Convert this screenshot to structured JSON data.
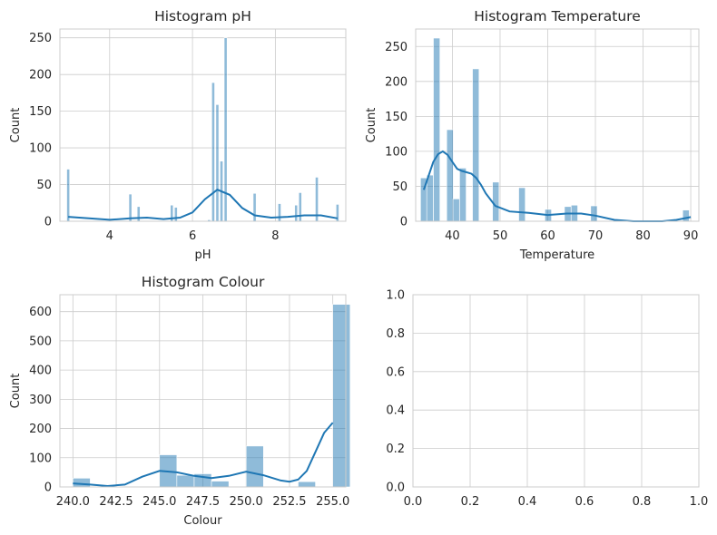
{
  "chart_data": [
    {
      "type": "histogram",
      "title": "Histogram pH",
      "xlabel": "pH",
      "ylabel": "Count",
      "xlim": [
        2.8,
        9.7
      ],
      "ylim": [
        0,
        262
      ],
      "xticks": [
        4,
        6,
        8
      ],
      "yticks": [
        0,
        50,
        100,
        150,
        200,
        250
      ],
      "bin_width": 0.07,
      "grid": true,
      "bins": [
        {
          "x": 3.0,
          "count": 71
        },
        {
          "x": 4.5,
          "count": 37
        },
        {
          "x": 4.7,
          "count": 20
        },
        {
          "x": 5.5,
          "count": 22
        },
        {
          "x": 5.6,
          "count": 19
        },
        {
          "x": 6.4,
          "count": 2
        },
        {
          "x": 6.5,
          "count": 189
        },
        {
          "x": 6.6,
          "count": 159
        },
        {
          "x": 6.7,
          "count": 82
        },
        {
          "x": 6.8,
          "count": 250
        },
        {
          "x": 7.5,
          "count": 38
        },
        {
          "x": 8.1,
          "count": 24
        },
        {
          "x": 8.5,
          "count": 22
        },
        {
          "x": 8.6,
          "count": 39
        },
        {
          "x": 9.0,
          "count": 60
        },
        {
          "x": 9.5,
          "count": 23
        }
      ],
      "kde": [
        [
          3.0,
          6
        ],
        [
          3.5,
          4
        ],
        [
          4.0,
          2
        ],
        [
          4.5,
          4
        ],
        [
          4.9,
          5
        ],
        [
          5.3,
          3
        ],
        [
          5.7,
          5
        ],
        [
          6.0,
          12
        ],
        [
          6.3,
          30
        ],
        [
          6.6,
          43
        ],
        [
          6.9,
          36
        ],
        [
          7.2,
          18
        ],
        [
          7.5,
          8
        ],
        [
          7.9,
          5
        ],
        [
          8.3,
          6
        ],
        [
          8.7,
          8
        ],
        [
          9.1,
          8
        ],
        [
          9.5,
          4
        ]
      ]
    },
    {
      "type": "histogram",
      "title": "Histogram Temperature",
      "xlabel": "Temperature",
      "ylabel": "Count",
      "xlim": [
        32.3,
        91.7
      ],
      "ylim": [
        0,
        275
      ],
      "xticks": [
        40,
        50,
        60,
        70,
        80,
        90
      ],
      "yticks": [
        0,
        50,
        100,
        150,
        200,
        250
      ],
      "bin_width": 1.37,
      "grid": true,
      "bins": [
        {
          "x": 34.0,
          "count": 62
        },
        {
          "x": 35.3,
          "count": 66
        },
        {
          "x": 36.7,
          "count": 262
        },
        {
          "x": 39.5,
          "count": 131
        },
        {
          "x": 40.8,
          "count": 32
        },
        {
          "x": 42.2,
          "count": 76
        },
        {
          "x": 44.9,
          "count": 218
        },
        {
          "x": 49.1,
          "count": 56
        },
        {
          "x": 54.6,
          "count": 48
        },
        {
          "x": 60.1,
          "count": 17
        },
        {
          "x": 64.2,
          "count": 21
        },
        {
          "x": 65.6,
          "count": 23
        },
        {
          "x": 69.7,
          "count": 22
        },
        {
          "x": 89.0,
          "count": 16
        }
      ],
      "kde": [
        [
          34,
          45
        ],
        [
          35,
          65
        ],
        [
          36,
          85
        ],
        [
          37,
          96
        ],
        [
          38,
          100
        ],
        [
          39,
          95
        ],
        [
          40,
          85
        ],
        [
          41,
          75
        ],
        [
          42,
          72
        ],
        [
          43,
          70
        ],
        [
          44,
          68
        ],
        [
          45,
          62
        ],
        [
          46,
          52
        ],
        [
          47,
          40
        ],
        [
          49,
          22
        ],
        [
          52,
          14
        ],
        [
          56,
          12
        ],
        [
          60,
          9
        ],
        [
          64,
          11
        ],
        [
          67,
          11
        ],
        [
          70,
          8
        ],
        [
          74,
          2
        ],
        [
          78,
          0
        ],
        [
          84,
          0
        ],
        [
          87,
          2
        ],
        [
          90,
          6
        ]
      ]
    },
    {
      "type": "histogram",
      "title": "Histogram Colour",
      "xlabel": "Colour",
      "ylabel": "Count",
      "xlim": [
        239.25,
        255.75
      ],
      "ylim": [
        0,
        658
      ],
      "xticks": [
        240.0,
        242.5,
        245.0,
        247.5,
        250.0,
        252.5,
        255.0
      ],
      "xtick_labels": [
        "240.0",
        "242.5",
        "245.0",
        "247.5",
        "250.0",
        "252.5",
        "255.0"
      ],
      "yticks": [
        0,
        100,
        200,
        300,
        400,
        500,
        600
      ],
      "bin_width": 1.0,
      "grid": true,
      "bins": [
        {
          "x": 240.5,
          "count": 30
        },
        {
          "x": 245.5,
          "count": 110
        },
        {
          "x": 246.5,
          "count": 40
        },
        {
          "x": 247.5,
          "count": 45
        },
        {
          "x": 248.5,
          "count": 20
        },
        {
          "x": 250.5,
          "count": 140
        },
        {
          "x": 253.5,
          "count": 18
        },
        {
          "x": 255.5,
          "count": 625
        }
      ],
      "kde": [
        [
          240.0,
          12
        ],
        [
          241.0,
          8
        ],
        [
          242.0,
          3
        ],
        [
          243.0,
          8
        ],
        [
          244.0,
          35
        ],
        [
          245.0,
          55
        ],
        [
          246.0,
          50
        ],
        [
          247.0,
          38
        ],
        [
          248.0,
          30
        ],
        [
          249.0,
          38
        ],
        [
          250.0,
          52
        ],
        [
          251.0,
          40
        ],
        [
          252.0,
          22
        ],
        [
          252.5,
          18
        ],
        [
          253.0,
          25
        ],
        [
          253.5,
          55
        ],
        [
          254.0,
          120
        ],
        [
          254.5,
          185
        ],
        [
          255.0,
          220
        ]
      ]
    },
    {
      "type": "empty",
      "title": "",
      "xlim": [
        0,
        1
      ],
      "ylim": [
        0,
        1
      ],
      "xticks": [
        0.0,
        0.2,
        0.4,
        0.6,
        0.8,
        1.0
      ],
      "xtick_labels": [
        "0.0",
        "0.2",
        "0.4",
        "0.6",
        "0.8",
        "1.0"
      ],
      "yticks": [
        0.0,
        0.2,
        0.4,
        0.6,
        0.8,
        1.0
      ],
      "ytick_labels": [
        "0.0",
        "0.2",
        "0.4",
        "0.6",
        "0.8",
        "1.0"
      ],
      "grid": true
    }
  ],
  "colors": {
    "bar": "#1f77b4",
    "kde": "#1f77b4",
    "grid": "#cccccc",
    "text": "#262626"
  }
}
